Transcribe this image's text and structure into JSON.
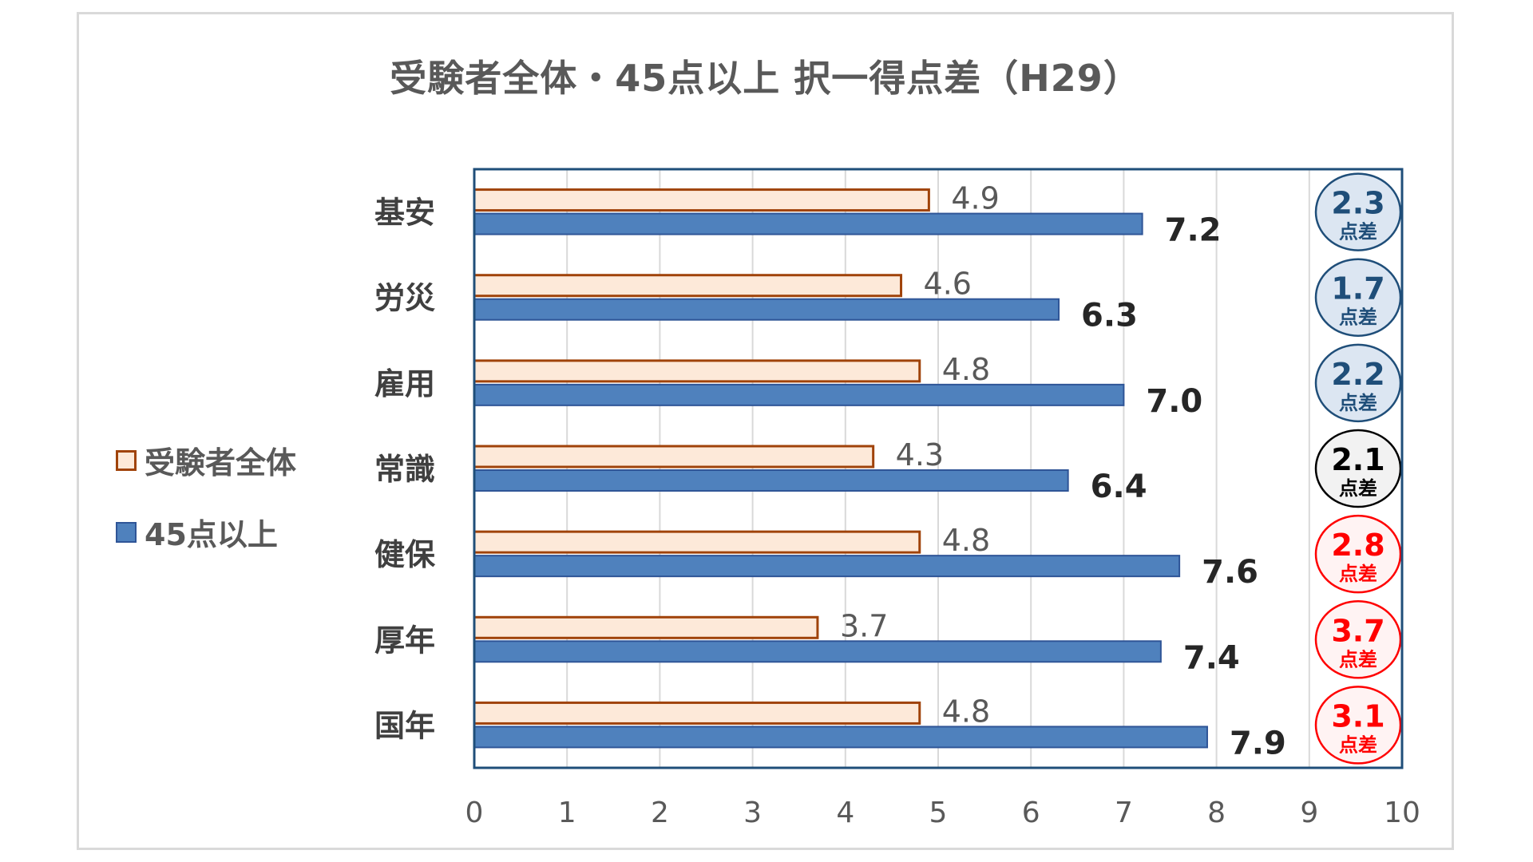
{
  "chart_data": {
    "type": "bar",
    "orientation": "horizontal",
    "title": "受験者全体・45点以上 択一得点差（H29）",
    "categories": [
      "基安",
      "労災",
      "雇用",
      "常識",
      "健保",
      "厚年",
      "国年"
    ],
    "series": [
      {
        "name": "受験者全体",
        "values": [
          4.9,
          4.6,
          4.8,
          4.3,
          4.8,
          3.7,
          4.8
        ],
        "labels": [
          "4.9",
          "4.6",
          "4.8",
          "4.3",
          "4.8",
          "3.7",
          "4.8"
        ]
      },
      {
        "name": "45点以上",
        "values": [
          7.2,
          6.3,
          7.0,
          6.4,
          7.6,
          7.4,
          7.9
        ],
        "labels": [
          "7.2",
          "6.3",
          "7.0",
          "6.4",
          "7.6",
          "7.4",
          "7.9"
        ]
      }
    ],
    "differences": [
      {
        "value": "2.3",
        "unit": "点差",
        "color": "#1f4e79",
        "fill": "#dce6f2"
      },
      {
        "value": "1.7",
        "unit": "点差",
        "color": "#1f4e79",
        "fill": "#dce6f2"
      },
      {
        "value": "2.2",
        "unit": "点差",
        "color": "#1f4e79",
        "fill": "#dce6f2"
      },
      {
        "value": "2.1",
        "unit": "点差",
        "color": "#000000",
        "fill": "#f2f2f2"
      },
      {
        "value": "2.8",
        "unit": "点差",
        "color": "#ff0000",
        "fill": "#fff3f3"
      },
      {
        "value": "3.7",
        "unit": "点差",
        "color": "#ff0000",
        "fill": "#fff3f3"
      },
      {
        "value": "3.1",
        "unit": "点差",
        "color": "#ff0000",
        "fill": "#fff3f3"
      }
    ],
    "xlim": [
      0,
      10
    ],
    "xticks": [
      "0",
      "1",
      "2",
      "3",
      "4",
      "5",
      "6",
      "7",
      "8",
      "9",
      "10"
    ],
    "grid": "vertical",
    "legend": "left",
    "colors": {
      "series1_fill": "#fde9d9",
      "series1_stroke": "#a0430a",
      "series2_fill": "#4f81bd",
      "series2_stroke": "#2f5597",
      "plot_border": "#1f4e79",
      "grid": "#d9d9d9",
      "tick_text": "#595959",
      "category_text": "#404040",
      "series1_label_text": "#595959",
      "series2_label_text": "#262626"
    }
  }
}
